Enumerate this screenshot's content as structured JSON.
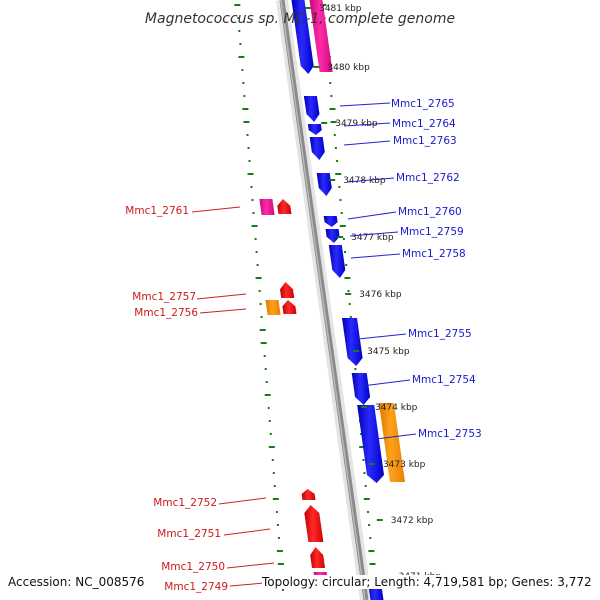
{
  "title": "Magnetococcus sp. MC-1, complete genome",
  "accession": "Accession: NC_008576",
  "summary": "Topology: circular; Length: 4,719,581 bp; Genes: 3,772",
  "colors": {
    "forward": "#1010ee",
    "reverse": "#ee1010",
    "orange": "#ff9900",
    "pink": "#ee1199",
    "gc_dots": "#1a7a1a",
    "backbone": "#808080"
  },
  "kbp_labels": [
    "3481 kbp",
    "3480 kbp",
    "3479 kbp",
    "3478 kbp",
    "3477 kbp",
    "3476 kbp",
    "3475 kbp",
    "3474 kbp",
    "3473 kbp",
    "3472 kbp",
    "3471 kbp"
  ],
  "genes_right": [
    "Mmc1_2765",
    "Mmc1_2764",
    "Mmc1_2763",
    "Mmc1_2762",
    "Mmc1_2760",
    "Mmc1_2759",
    "Mmc1_2758",
    "Mmc1_2755",
    "Mmc1_2754",
    "Mmc1_2753"
  ],
  "genes_left": [
    "Mmc1_2761",
    "Mmc1_2757",
    "Mmc1_2756",
    "Mmc1_2752",
    "Mmc1_2751",
    "Mmc1_2750",
    "Mmc1_2749"
  ]
}
